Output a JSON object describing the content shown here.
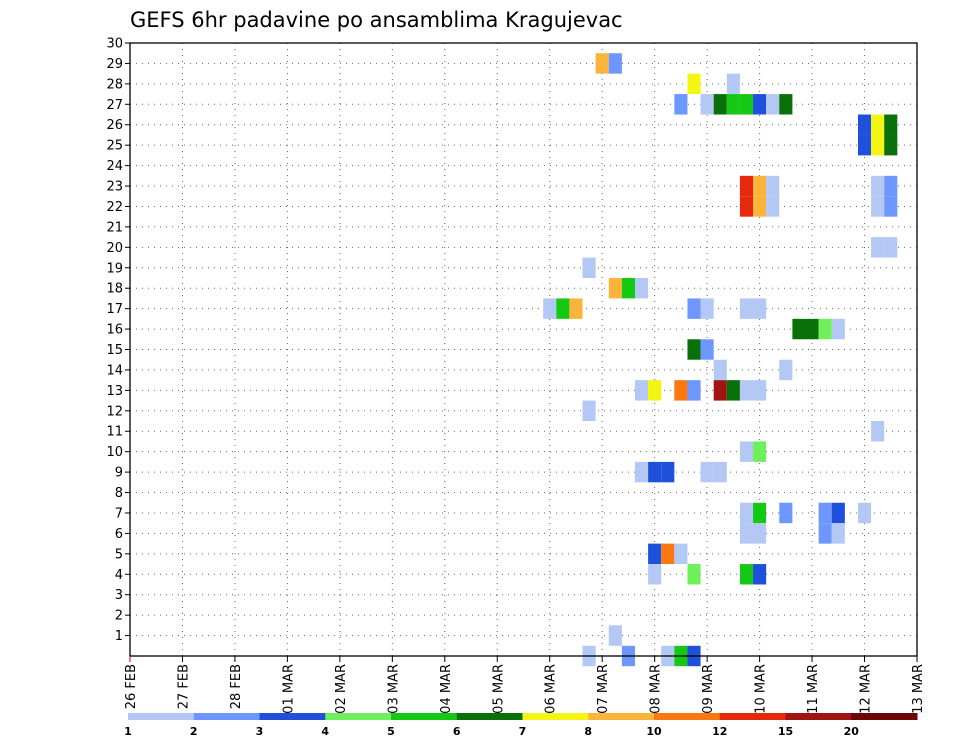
{
  "chart_data": {
    "type": "heatmap",
    "title": "GEFS 6hr padavine po ansamblima Kragujevac",
    "xlabel": "",
    "ylabel": "",
    "x_ticks": [
      "26 FEB",
      "27 FEB",
      "28 FEB",
      "01 MAR",
      "02 MAR",
      "03 MAR",
      "04 MAR",
      "05 MAR",
      "06 MAR",
      "07 MAR",
      "08 MAR",
      "09 MAR",
      "10 MAR",
      "11 MAR",
      "12 MAR",
      "13 MAR"
    ],
    "y_ticks": [
      "1",
      "2",
      "3",
      "4",
      "5",
      "6",
      "7",
      "8",
      "9",
      "10",
      "11",
      "12",
      "13",
      "14",
      "15",
      "16",
      "17",
      "18",
      "19",
      "20",
      "21",
      "22",
      "23",
      "24",
      "25",
      "26",
      "27",
      "28",
      "29",
      "30"
    ],
    "x_range": [
      "26 FEB 00Z",
      "13 MAR 00Z"
    ],
    "x_step_hours": 6,
    "y_range": [
      0,
      30
    ],
    "grid": true,
    "colorbar": {
      "position": "bottom",
      "labels": [
        "1",
        "2",
        "3",
        "4",
        "5",
        "6",
        "7",
        "8",
        "10",
        "12",
        "15",
        "20"
      ],
      "colors": [
        "#b4c8f5",
        "#6e96ff",
        "#1e50dc",
        "#6ef05a",
        "#14c814",
        "#0a700a",
        "#f5f514",
        "#fab43c",
        "#fa780f",
        "#e6280f",
        "#a01414",
        "#6e0505"
      ]
    },
    "cells": [
      {
        "t": "07 MAR 00Z",
        "m": 29,
        "v": 8
      },
      {
        "t": "07 MAR 06Z",
        "m": 29,
        "v": 2
      },
      {
        "t": "08 MAR 18Z",
        "m": 28,
        "v": 7
      },
      {
        "t": "09 MAR 12Z",
        "m": 28,
        "v": 1
      },
      {
        "t": "08 MAR 12Z",
        "m": 27,
        "v": 2
      },
      {
        "t": "09 MAR 00Z",
        "m": 27,
        "v": 1
      },
      {
        "t": "09 MAR 06Z",
        "m": 27,
        "v": 6
      },
      {
        "t": "09 MAR 12Z",
        "m": 27,
        "v": 5
      },
      {
        "t": "09 MAR 18Z",
        "m": 27,
        "v": 5
      },
      {
        "t": "10 MAR 00Z",
        "m": 27,
        "v": 3
      },
      {
        "t": "10 MAR 06Z",
        "m": 27,
        "v": 1
      },
      {
        "t": "10 MAR 12Z",
        "m": 27,
        "v": 6
      },
      {
        "t": "12 MAR 00Z",
        "m": 26,
        "v": 3
      },
      {
        "t": "12 MAR 06Z",
        "m": 26,
        "v": 7
      },
      {
        "t": "12 MAR 12Z",
        "m": 26,
        "v": 6
      },
      {
        "t": "12 MAR 00Z",
        "m": 25,
        "v": 3
      },
      {
        "t": "12 MAR 06Z",
        "m": 25,
        "v": 7
      },
      {
        "t": "12 MAR 12Z",
        "m": 25,
        "v": 6
      },
      {
        "t": "09 MAR 18Z",
        "m": 23,
        "v": 12
      },
      {
        "t": "10 MAR 00Z",
        "m": 23,
        "v": 8
      },
      {
        "t": "10 MAR 06Z",
        "m": 23,
        "v": 1
      },
      {
        "t": "12 MAR 06Z",
        "m": 23,
        "v": 1
      },
      {
        "t": "12 MAR 12Z",
        "m": 23,
        "v": 2
      },
      {
        "t": "09 MAR 18Z",
        "m": 22,
        "v": 12
      },
      {
        "t": "10 MAR 00Z",
        "m": 22,
        "v": 8
      },
      {
        "t": "10 MAR 06Z",
        "m": 22,
        "v": 1
      },
      {
        "t": "12 MAR 06Z",
        "m": 22,
        "v": 1
      },
      {
        "t": "12 MAR 12Z",
        "m": 22,
        "v": 2
      },
      {
        "t": "12 MAR 06Z",
        "m": 20,
        "v": 1
      },
      {
        "t": "12 MAR 12Z",
        "m": 20,
        "v": 1
      },
      {
        "t": "06 MAR 18Z",
        "m": 19,
        "v": 1
      },
      {
        "t": "07 MAR 06Z",
        "m": 18,
        "v": 8
      },
      {
        "t": "07 MAR 12Z",
        "m": 18,
        "v": 5
      },
      {
        "t": "07 MAR 18Z",
        "m": 18,
        "v": 1
      },
      {
        "t": "06 MAR 00Z",
        "m": 17,
        "v": 1
      },
      {
        "t": "06 MAR 06Z",
        "m": 17,
        "v": 5
      },
      {
        "t": "06 MAR 12Z",
        "m": 17,
        "v": 8
      },
      {
        "t": "08 MAR 18Z",
        "m": 17,
        "v": 2
      },
      {
        "t": "09 MAR 00Z",
        "m": 17,
        "v": 1
      },
      {
        "t": "09 MAR 18Z",
        "m": 17,
        "v": 1
      },
      {
        "t": "10 MAR 00Z",
        "m": 17,
        "v": 1
      },
      {
        "t": "10 MAR 18Z",
        "m": 16,
        "v": 6
      },
      {
        "t": "11 MAR 00Z",
        "m": 16,
        "v": 6
      },
      {
        "t": "11 MAR 06Z",
        "m": 16,
        "v": 4
      },
      {
        "t": "11 MAR 12Z",
        "m": 16,
        "v": 1
      },
      {
        "t": "08 MAR 18Z",
        "m": 15,
        "v": 6
      },
      {
        "t": "09 MAR 00Z",
        "m": 15,
        "v": 2
      },
      {
        "t": "09 MAR 06Z",
        "m": 14,
        "v": 1
      },
      {
        "t": "10 MAR 12Z",
        "m": 14,
        "v": 1
      },
      {
        "t": "07 MAR 18Z",
        "m": 13,
        "v": 1
      },
      {
        "t": "08 MAR 00Z",
        "m": 13,
        "v": 7
      },
      {
        "t": "08 MAR 12Z",
        "m": 13,
        "v": 10
      },
      {
        "t": "08 MAR 18Z",
        "m": 13,
        "v": 2
      },
      {
        "t": "09 MAR 06Z",
        "m": 13,
        "v": 15
      },
      {
        "t": "09 MAR 12Z",
        "m": 13,
        "v": 6
      },
      {
        "t": "09 MAR 18Z",
        "m": 13,
        "v": 1
      },
      {
        "t": "10 MAR 00Z",
        "m": 13,
        "v": 1
      },
      {
        "t": "06 MAR 18Z",
        "m": 12,
        "v": 1
      },
      {
        "t": "12 MAR 06Z",
        "m": 11,
        "v": 1
      },
      {
        "t": "09 MAR 18Z",
        "m": 10,
        "v": 1
      },
      {
        "t": "10 MAR 00Z",
        "m": 10,
        "v": 4
      },
      {
        "t": "07 MAR 18Z",
        "m": 9,
        "v": 1
      },
      {
        "t": "08 MAR 00Z",
        "m": 9,
        "v": 3
      },
      {
        "t": "08 MAR 06Z",
        "m": 9,
        "v": 3
      },
      {
        "t": "09 MAR 00Z",
        "m": 9,
        "v": 1
      },
      {
        "t": "09 MAR 06Z",
        "m": 9,
        "v": 1
      },
      {
        "t": "09 MAR 18Z",
        "m": 7,
        "v": 1
      },
      {
        "t": "10 MAR 00Z",
        "m": 7,
        "v": 5
      },
      {
        "t": "10 MAR 12Z",
        "m": 7,
        "v": 2
      },
      {
        "t": "11 MAR 06Z",
        "m": 7,
        "v": 2
      },
      {
        "t": "11 MAR 12Z",
        "m": 7,
        "v": 3
      },
      {
        "t": "12 MAR 00Z",
        "m": 7,
        "v": 1
      },
      {
        "t": "09 MAR 18Z",
        "m": 6,
        "v": 1
      },
      {
        "t": "10 MAR 00Z",
        "m": 6,
        "v": 1
      },
      {
        "t": "11 MAR 06Z",
        "m": 6,
        "v": 2
      },
      {
        "t": "11 MAR 12Z",
        "m": 6,
        "v": 1
      },
      {
        "t": "08 MAR 00Z",
        "m": 5,
        "v": 3
      },
      {
        "t": "08 MAR 06Z",
        "m": 5,
        "v": 10
      },
      {
        "t": "08 MAR 12Z",
        "m": 5,
        "v": 1
      },
      {
        "t": "08 MAR 00Z",
        "m": 4,
        "v": 1
      },
      {
        "t": "08 MAR 18Z",
        "m": 4,
        "v": 4
      },
      {
        "t": "09 MAR 18Z",
        "m": 4,
        "v": 5
      },
      {
        "t": "10 MAR 00Z",
        "m": 4,
        "v": 3
      },
      {
        "t": "07 MAR 06Z",
        "m": 1,
        "v": 1
      },
      {
        "t": "06 MAR 18Z",
        "m": 0,
        "v": 1
      },
      {
        "t": "07 MAR 12Z",
        "m": 0,
        "v": 2
      },
      {
        "t": "08 MAR 06Z",
        "m": 0,
        "v": 1
      },
      {
        "t": "08 MAR 12Z",
        "m": 0,
        "v": 5
      },
      {
        "t": "08 MAR 18Z",
        "m": 0,
        "v": 3
      }
    ]
  }
}
